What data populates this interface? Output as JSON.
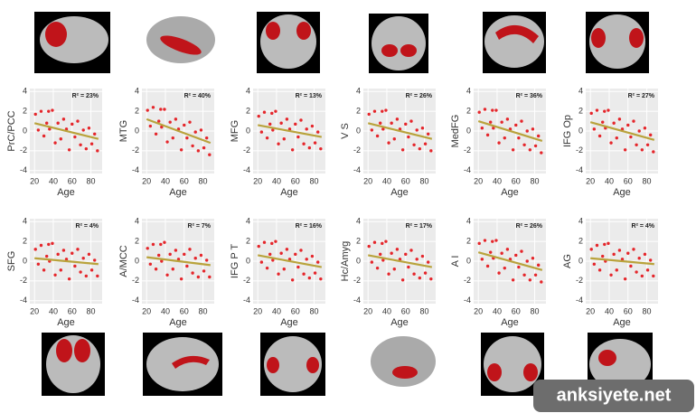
{
  "chart_data": [
    {
      "type": "scatter",
      "ylabel": "PrC/PCC",
      "xlabel": "Age",
      "annotation": "R² = 23%",
      "color": "#e5262b",
      "x": [
        21,
        24,
        27,
        30,
        33,
        36,
        39,
        42,
        45,
        48,
        51,
        54,
        57,
        60,
        63,
        66,
        69,
        72,
        75,
        78,
        81,
        84,
        87,
        35
      ],
      "values": [
        1.7,
        0.1,
        2.0,
        -0.5,
        0.8,
        0.2,
        2.1,
        -1.2,
        0.8,
        -0.8,
        1.2,
        0.2,
        -1.9,
        0.7,
        -0.6,
        1.0,
        -1.4,
        0.1,
        -1.8,
        0.3,
        -1.3,
        -0.3,
        -2.0,
        2.0
      ],
      "fit": {
        "x": [
          20,
          88
        ],
        "values": [
          0.8,
          -0.8
        ],
        "color": "#b9a33c"
      },
      "xlim": [
        15,
        92
      ],
      "ylim": [
        -4.3,
        4.3
      ],
      "xticks": [
        20,
        40,
        60,
        80
      ],
      "yticks": [
        -4,
        -2,
        0,
        2,
        4
      ],
      "grid": true
    },
    {
      "type": "scatter",
      "ylabel": "MTG",
      "xlabel": "Age",
      "annotation": "R² = 40%",
      "color": "#e5262b",
      "x": [
        21,
        24,
        27,
        30,
        33,
        36,
        39,
        42,
        45,
        48,
        51,
        54,
        57,
        60,
        63,
        66,
        69,
        72,
        75,
        78,
        81,
        84,
        87,
        35
      ],
      "values": [
        2.1,
        0.5,
        2.4,
        -0.3,
        1.0,
        0.4,
        2.2,
        -1.1,
        0.9,
        -0.7,
        1.2,
        0.2,
        -1.9,
        0.6,
        -0.7,
        0.9,
        -1.5,
        -0.1,
        -2.0,
        0.1,
        -1.7,
        -0.7,
        -2.4,
        2.2
      ],
      "fit": {
        "x": [
          20,
          88
        ],
        "values": [
          1.2,
          -1.2
        ],
        "color": "#b9a33c"
      },
      "xlim": [
        15,
        92
      ],
      "ylim": [
        -4.3,
        4.3
      ],
      "xticks": [
        20,
        40,
        60,
        80
      ],
      "yticks": [
        -4,
        -2,
        0,
        2,
        4
      ],
      "grid": true
    },
    {
      "type": "scatter",
      "ylabel": "MFG",
      "xlabel": "Age",
      "annotation": "R² = 13%",
      "color": "#e5262b",
      "x": [
        21,
        24,
        27,
        30,
        33,
        36,
        39,
        42,
        45,
        48,
        51,
        54,
        57,
        60,
        63,
        66,
        69,
        72,
        75,
        78,
        81,
        84,
        87,
        35
      ],
      "values": [
        1.5,
        -0.1,
        1.9,
        -0.7,
        0.7,
        0.1,
        2.0,
        -1.3,
        0.8,
        -0.8,
        1.2,
        0.2,
        -1.9,
        0.7,
        -0.6,
        1.1,
        -1.3,
        0.2,
        -1.7,
        0.5,
        -1.2,
        -0.1,
        -1.8,
        1.8
      ],
      "fit": {
        "x": [
          20,
          88
        ],
        "values": [
          0.6,
          -0.6
        ],
        "color": "#b9a33c"
      },
      "xlim": [
        15,
        92
      ],
      "ylim": [
        -4.3,
        4.3
      ],
      "xticks": [
        20,
        40,
        60,
        80
      ],
      "yticks": [
        -4,
        -2,
        0,
        2,
        4
      ],
      "grid": true
    },
    {
      "type": "scatter",
      "ylabel": "V S",
      "xlabel": "Age",
      "annotation": "R² = 26%",
      "color": "#e5262b",
      "x": [
        21,
        24,
        27,
        30,
        33,
        36,
        39,
        42,
        45,
        48,
        51,
        54,
        57,
        60,
        63,
        66,
        69,
        72,
        75,
        78,
        81,
        84,
        87,
        35
      ],
      "values": [
        1.7,
        0.1,
        2.0,
        -0.5,
        0.8,
        0.2,
        2.1,
        -1.2,
        0.8,
        -0.8,
        1.2,
        0.2,
        -1.9,
        0.7,
        -0.6,
        1.0,
        -1.4,
        0.1,
        -1.8,
        0.3,
        -1.3,
        -0.3,
        -2.0,
        2.0
      ],
      "fit": {
        "x": [
          20,
          88
        ],
        "values": [
          0.8,
          -0.8
        ],
        "color": "#b9a33c"
      },
      "xlim": [
        15,
        92
      ],
      "ylim": [
        -4.3,
        4.3
      ],
      "xticks": [
        20,
        40,
        60,
        80
      ],
      "yticks": [
        -4,
        -2,
        0,
        2,
        4
      ],
      "grid": true
    },
    {
      "type": "scatter",
      "ylabel": "MedFG",
      "xlabel": "Age",
      "annotation": "R² = 36%",
      "color": "#e5262b",
      "x": [
        21,
        24,
        27,
        30,
        33,
        36,
        39,
        42,
        45,
        48,
        51,
        54,
        57,
        60,
        63,
        66,
        69,
        72,
        75,
        78,
        81,
        84,
        87,
        35
      ],
      "values": [
        1.9,
        0.3,
        2.2,
        -0.4,
        0.9,
        0.3,
        2.1,
        -1.2,
        0.9,
        -0.7,
        1.2,
        0.2,
        -1.9,
        0.6,
        -0.7,
        1.0,
        -1.4,
        0,
        -1.9,
        0.2,
        -1.5,
        -0.5,
        -2.2,
        2.1
      ],
      "fit": {
        "x": [
          20,
          88
        ],
        "values": [
          1.0,
          -1.0
        ],
        "color": "#b9a33c"
      },
      "xlim": [
        15,
        92
      ],
      "ylim": [
        -4.3,
        4.3
      ],
      "xticks": [
        20,
        40,
        60,
        80
      ],
      "yticks": [
        -4,
        -2,
        0,
        2,
        4
      ],
      "grid": true
    },
    {
      "type": "scatter",
      "ylabel": "IFG Op",
      "xlabel": "Age",
      "annotation": "R² = 27%",
      "color": "#e5262b",
      "x": [
        21,
        24,
        27,
        30,
        33,
        36,
        39,
        42,
        45,
        48,
        51,
        54,
        57,
        60,
        63,
        66,
        69,
        72,
        75,
        78,
        81,
        84,
        87,
        35
      ],
      "values": [
        1.8,
        0.2,
        2.1,
        -0.5,
        0.9,
        0.3,
        2.1,
        -1.2,
        0.8,
        -0.7,
        1.2,
        0.2,
        -1.9,
        0.6,
        -0.6,
        1.0,
        -1.4,
        0,
        -1.9,
        0.3,
        -1.4,
        -0.4,
        -2.1,
        2.0
      ],
      "fit": {
        "x": [
          20,
          88
        ],
        "values": [
          0.9,
          -0.9
        ],
        "color": "#b9a33c"
      },
      "xlim": [
        15,
        92
      ],
      "ylim": [
        -4.3,
        4.3
      ],
      "xticks": [
        20,
        40,
        60,
        80
      ],
      "yticks": [
        -4,
        -2,
        0,
        2,
        4
      ],
      "grid": true
    },
    {
      "type": "scatter",
      "ylabel": "SFG",
      "xlabel": "Age",
      "annotation": "R² = 4%",
      "color": "#e5262b",
      "x": [
        21,
        24,
        27,
        30,
        33,
        36,
        39,
        42,
        45,
        48,
        51,
        54,
        57,
        60,
        63,
        66,
        69,
        72,
        75,
        78,
        81,
        84,
        87,
        35
      ],
      "values": [
        1.2,
        -0.3,
        1.6,
        -0.9,
        0.5,
        0,
        1.8,
        -1.4,
        0.7,
        -0.9,
        1.1,
        0.2,
        -1.8,
        0.8,
        -0.5,
        1.2,
        -1.1,
        0.3,
        -1.5,
        0.7,
        -0.9,
        0.1,
        -1.5,
        1.7
      ],
      "fit": {
        "x": [
          20,
          88
        ],
        "values": [
          0.3,
          -0.3
        ],
        "color": "#b9a33c"
      },
      "xlim": [
        15,
        92
      ],
      "ylim": [
        -4.3,
        4.3
      ],
      "xticks": [
        20,
        40,
        60,
        80
      ],
      "yticks": [
        -4,
        -2,
        0,
        2,
        4
      ],
      "grid": true
    },
    {
      "type": "scatter",
      "ylabel": "A/MCC",
      "xlabel": "Age",
      "annotation": "R² = 7%",
      "color": "#e5262b",
      "x": [
        21,
        24,
        27,
        30,
        33,
        36,
        39,
        42,
        45,
        48,
        51,
        54,
        57,
        60,
        63,
        66,
        69,
        72,
        75,
        78,
        81,
        84,
        87,
        35
      ],
      "values": [
        1.3,
        -0.3,
        1.7,
        -0.8,
        0.6,
        0,
        1.9,
        -1.4,
        0.7,
        -0.8,
        1.1,
        0.2,
        -1.8,
        0.7,
        -0.5,
        1.2,
        -1.2,
        0.3,
        -1.6,
        0.6,
        -1.0,
        0.1,
        -1.6,
        1.7
      ],
      "fit": {
        "x": [
          20,
          88
        ],
        "values": [
          0.4,
          -0.4
        ],
        "color": "#b9a33c"
      },
      "xlim": [
        15,
        92
      ],
      "ylim": [
        -4.3,
        4.3
      ],
      "xticks": [
        20,
        40,
        60,
        80
      ],
      "yticks": [
        -4,
        -2,
        0,
        2,
        4
      ],
      "grid": true
    },
    {
      "type": "scatter",
      "ylabel": "IFG P T",
      "xlabel": "Age",
      "annotation": "R² = 16%",
      "color": "#e5262b",
      "x": [
        21,
        24,
        27,
        30,
        33,
        36,
        39,
        42,
        45,
        48,
        51,
        54,
        57,
        60,
        63,
        66,
        69,
        72,
        75,
        78,
        81,
        84,
        87,
        35
      ],
      "values": [
        1.5,
        -0.1,
        1.9,
        -0.7,
        0.7,
        0.1,
        2.0,
        -1.3,
        0.8,
        -0.8,
        1.2,
        0.2,
        -1.9,
        0.7,
        -0.6,
        1.1,
        -1.3,
        0.2,
        -1.7,
        0.5,
        -1.2,
        -0.1,
        -1.8,
        1.8
      ],
      "fit": {
        "x": [
          20,
          88
        ],
        "values": [
          0.6,
          -0.6
        ],
        "color": "#b9a33c"
      },
      "xlim": [
        15,
        92
      ],
      "ylim": [
        -4.3,
        4.3
      ],
      "xticks": [
        20,
        40,
        60,
        80
      ],
      "yticks": [
        -4,
        -2,
        0,
        2,
        4
      ],
      "grid": true
    },
    {
      "type": "scatter",
      "ylabel": "Hc/Amyg",
      "xlabel": "Age",
      "annotation": "R² = 17%",
      "color": "#e5262b",
      "x": [
        21,
        24,
        27,
        30,
        33,
        36,
        39,
        42,
        45,
        48,
        51,
        54,
        57,
        60,
        63,
        66,
        69,
        72,
        75,
        78,
        81,
        84,
        87,
        35
      ],
      "values": [
        1.5,
        -0.1,
        1.9,
        -0.7,
        0.7,
        0.1,
        2.0,
        -1.3,
        0.8,
        -0.8,
        1.2,
        0.2,
        -1.9,
        0.7,
        -0.6,
        1.1,
        -1.3,
        0.2,
        -1.7,
        0.5,
        -1.2,
        -0.1,
        -1.8,
        1.8
      ],
      "fit": {
        "x": [
          20,
          88
        ],
        "values": [
          0.6,
          -0.6
        ],
        "color": "#b9a33c"
      },
      "xlim": [
        15,
        92
      ],
      "ylim": [
        -4.3,
        4.3
      ],
      "xticks": [
        20,
        40,
        60,
        80
      ],
      "yticks": [
        -4,
        -2,
        0,
        2,
        4
      ],
      "grid": true
    },
    {
      "type": "scatter",
      "ylabel": "A I",
      "xlabel": "Age",
      "annotation": "R² = 26%",
      "color": "#e5262b",
      "x": [
        21,
        24,
        27,
        30,
        33,
        36,
        39,
        42,
        45,
        48,
        51,
        54,
        57,
        60,
        63,
        66,
        69,
        72,
        75,
        78,
        81,
        84,
        87,
        35
      ],
      "values": [
        1.8,
        0.2,
        2.1,
        -0.5,
        0.9,
        0.3,
        2.1,
        -1.2,
        0.8,
        -0.7,
        1.2,
        0.2,
        -1.9,
        0.6,
        -0.6,
        1.0,
        -1.4,
        0,
        -1.9,
        0.3,
        -1.4,
        -0.4,
        -2.1,
        2.0
      ],
      "fit": {
        "x": [
          20,
          88
        ],
        "values": [
          0.9,
          -0.9
        ],
        "color": "#b9a33c"
      },
      "xlim": [
        15,
        92
      ],
      "ylim": [
        -4.3,
        4.3
      ],
      "xticks": [
        20,
        40,
        60,
        80
      ],
      "yticks": [
        -4,
        -2,
        0,
        2,
        4
      ],
      "grid": true
    },
    {
      "type": "scatter",
      "ylabel": "AG",
      "xlabel": "Age",
      "annotation": "R² = 4%",
      "color": "#e5262b",
      "x": [
        21,
        24,
        27,
        30,
        33,
        36,
        39,
        42,
        45,
        48,
        51,
        54,
        57,
        60,
        63,
        66,
        69,
        72,
        75,
        78,
        81,
        84,
        87,
        35
      ],
      "values": [
        1.2,
        -0.3,
        1.6,
        -0.9,
        0.5,
        0,
        1.8,
        -1.4,
        0.7,
        -0.9,
        1.1,
        0.2,
        -1.8,
        0.8,
        -0.5,
        1.2,
        -1.1,
        0.3,
        -1.5,
        0.7,
        -0.9,
        0.1,
        -1.5,
        1.7
      ],
      "fit": {
        "x": [
          20,
          88
        ],
        "values": [
          0.3,
          -0.3
        ],
        "color": "#b9a33c"
      },
      "xlim": [
        15,
        92
      ],
      "ylim": [
        -4.3,
        4.3
      ],
      "xticks": [
        20,
        40,
        60,
        80
      ],
      "yticks": [
        -4,
        -2,
        0,
        2,
        4
      ],
      "grid": true
    }
  ],
  "watermark": "anksiyete.net"
}
